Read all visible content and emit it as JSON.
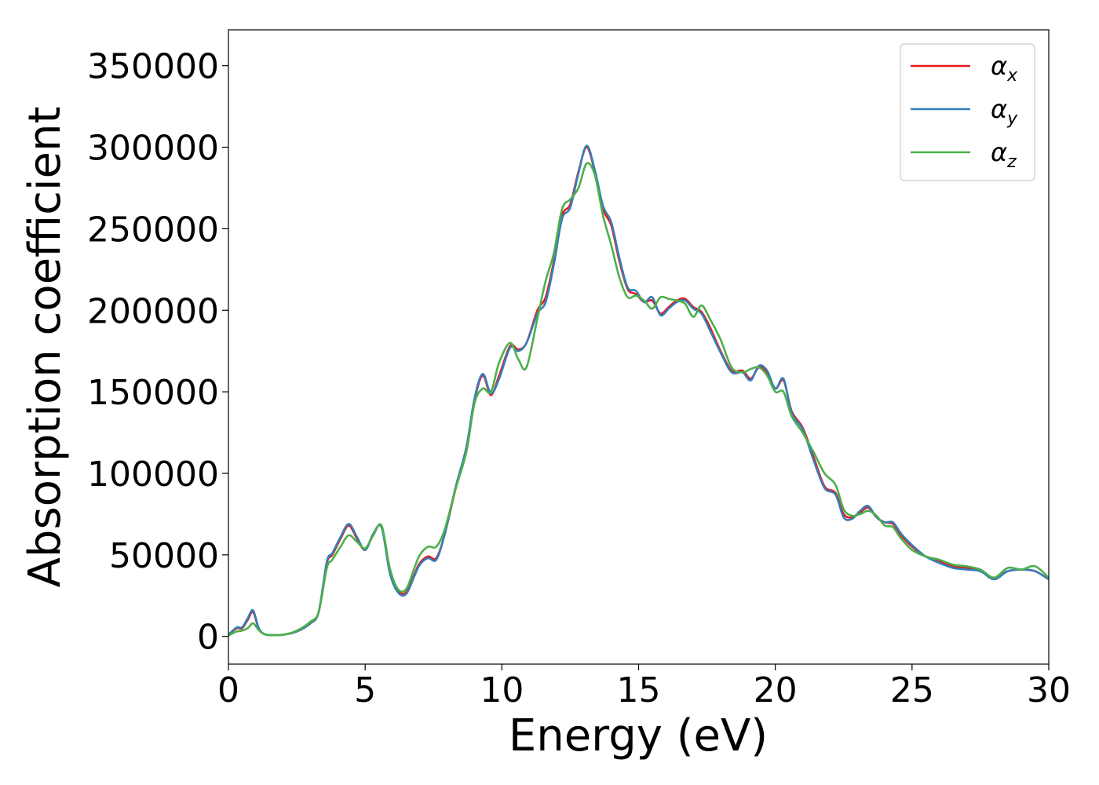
{
  "chart_data": {
    "type": "line",
    "title": "",
    "xlabel": "Energy (eV)",
    "ylabel": "Absorption coefficient",
    "xlim": [
      0,
      30
    ],
    "ylim": [
      -17000,
      372000
    ],
    "xticks": [
      0,
      5,
      10,
      15,
      20,
      25,
      30
    ],
    "yticks": [
      0,
      50000,
      100000,
      150000,
      200000,
      250000,
      300000,
      350000
    ],
    "grid": false,
    "legend_position": "top-right",
    "series": [
      {
        "name": "α_x",
        "label_main": "α",
        "label_sub": "x",
        "color": "#e41a1c",
        "x": [
          0,
          0.3,
          0.5,
          0.7,
          0.9,
          1.1,
          1.3,
          1.6,
          2.0,
          2.5,
          3.0,
          3.3,
          3.6,
          3.8,
          4.1,
          4.4,
          4.7,
          5.0,
          5.3,
          5.6,
          5.9,
          6.2,
          6.5,
          6.8,
          7.0,
          7.3,
          7.6,
          7.9,
          8.3,
          8.7,
          9.0,
          9.3,
          9.6,
          9.9,
          10.3,
          10.6,
          10.9,
          11.3,
          11.6,
          11.9,
          12.2,
          12.5,
          12.8,
          13.1,
          13.4,
          13.7,
          14.0,
          14.3,
          14.6,
          14.9,
          15.2,
          15.5,
          15.8,
          16.1,
          16.4,
          16.7,
          17.0,
          17.3,
          17.6,
          18.0,
          18.4,
          18.8,
          19.1,
          19.4,
          19.7,
          20.0,
          20.3,
          20.6,
          21.0,
          21.4,
          21.8,
          22.2,
          22.5,
          22.8,
          23.1,
          23.4,
          23.7,
          24.0,
          24.3,
          24.6,
          25.0,
          25.5,
          26.0,
          26.5,
          27.0,
          27.5,
          28.0,
          28.5,
          29.0,
          29.5,
          30.0
        ],
        "y": [
          1000,
          5000,
          5000,
          10000,
          15000,
          5000,
          1500,
          800,
          1000,
          3000,
          8000,
          15000,
          45000,
          50000,
          60000,
          68000,
          60000,
          53000,
          63000,
          67000,
          40000,
          28000,
          27000,
          38000,
          45000,
          49000,
          48000,
          62000,
          90000,
          115000,
          145000,
          160000,
          148000,
          160000,
          178000,
          176000,
          180000,
          200000,
          208000,
          230000,
          258000,
          265000,
          285000,
          300000,
          285000,
          262000,
          252000,
          230000,
          213000,
          210000,
          205000,
          206000,
          198000,
          202000,
          206000,
          207000,
          202000,
          199000,
          190000,
          175000,
          163000,
          163000,
          158000,
          165000,
          162000,
          152000,
          157000,
          138000,
          128000,
          110000,
          92000,
          88000,
          75000,
          73000,
          76000,
          79000,
          73000,
          70000,
          69000,
          62000,
          55000,
          49000,
          46000,
          43000,
          42000,
          40000,
          36000,
          40000,
          41000,
          40000,
          35000
        ]
      },
      {
        "name": "α_y",
        "label_main": "α",
        "label_sub": "y",
        "color": "#377eb8",
        "x": [
          0,
          0.3,
          0.5,
          0.7,
          0.9,
          1.1,
          1.3,
          1.6,
          2.0,
          2.5,
          3.0,
          3.3,
          3.6,
          3.8,
          4.1,
          4.4,
          4.7,
          5.0,
          5.3,
          5.6,
          5.9,
          6.2,
          6.5,
          6.8,
          7.0,
          7.3,
          7.6,
          7.9,
          8.3,
          8.7,
          9.0,
          9.3,
          9.6,
          9.9,
          10.3,
          10.6,
          10.9,
          11.3,
          11.6,
          11.9,
          12.2,
          12.5,
          12.8,
          13.1,
          13.4,
          13.7,
          14.0,
          14.3,
          14.6,
          14.9,
          15.2,
          15.5,
          15.8,
          16.1,
          16.4,
          16.7,
          17.0,
          17.3,
          17.6,
          18.0,
          18.4,
          18.8,
          19.1,
          19.4,
          19.7,
          20.0,
          20.3,
          20.6,
          21.0,
          21.4,
          21.8,
          22.2,
          22.5,
          22.8,
          23.1,
          23.4,
          23.7,
          24.0,
          24.3,
          24.6,
          25.0,
          25.5,
          26.0,
          26.5,
          27.0,
          27.5,
          28.0,
          28.5,
          29.0,
          29.5,
          30.0
        ],
        "y": [
          1000,
          5500,
          5500,
          11000,
          16000,
          5500,
          1500,
          800,
          1000,
          3000,
          8000,
          15000,
          46000,
          51000,
          61000,
          69000,
          61000,
          53000,
          63000,
          67000,
          39000,
          27000,
          26000,
          37000,
          44000,
          48000,
          47000,
          62000,
          91000,
          116000,
          146000,
          161000,
          149000,
          158000,
          177000,
          175000,
          180000,
          198000,
          205000,
          228000,
          256000,
          263000,
          284000,
          301000,
          286000,
          264000,
          254000,
          232000,
          214000,
          212000,
          205000,
          208000,
          197000,
          201000,
          205000,
          206000,
          201000,
          198000,
          188000,
          174000,
          162000,
          162000,
          157000,
          166000,
          163000,
          152000,
          158000,
          137000,
          127000,
          108000,
          91000,
          87000,
          73000,
          72000,
          77000,
          80000,
          73000,
          70000,
          70000,
          63000,
          56000,
          49000,
          45000,
          42000,
          41000,
          40000,
          35000,
          40000,
          41000,
          40000,
          35000
        ]
      },
      {
        "name": "α_z",
        "label_main": "α",
        "label_sub": "z",
        "color": "#4daf4a",
        "x": [
          0,
          0.3,
          0.5,
          0.7,
          0.9,
          1.1,
          1.3,
          1.6,
          2.0,
          2.5,
          3.0,
          3.3,
          3.6,
          3.8,
          4.1,
          4.4,
          4.7,
          5.0,
          5.3,
          5.6,
          5.9,
          6.2,
          6.5,
          6.8,
          7.0,
          7.3,
          7.6,
          7.9,
          8.3,
          8.7,
          9.0,
          9.3,
          9.6,
          9.9,
          10.3,
          10.6,
          10.9,
          11.3,
          11.6,
          11.9,
          12.2,
          12.5,
          12.8,
          13.1,
          13.4,
          13.7,
          14.0,
          14.3,
          14.6,
          14.9,
          15.2,
          15.5,
          15.8,
          16.1,
          16.4,
          16.7,
          17.0,
          17.3,
          17.6,
          18.0,
          18.4,
          18.8,
          19.1,
          19.4,
          19.7,
          20.0,
          20.3,
          20.6,
          21.0,
          21.4,
          21.8,
          22.2,
          22.5,
          22.8,
          23.1,
          23.4,
          23.7,
          24.0,
          24.3,
          24.6,
          25.0,
          25.5,
          26.0,
          26.5,
          27.0,
          27.5,
          28.0,
          28.5,
          29.0,
          29.5,
          30.0
        ],
        "y": [
          500,
          3000,
          3500,
          5000,
          8000,
          4000,
          1500,
          800,
          1000,
          3500,
          9000,
          15000,
          42000,
          47000,
          55000,
          62000,
          58000,
          54000,
          62000,
          68000,
          42000,
          29000,
          29000,
          42000,
          50000,
          55000,
          55000,
          65000,
          90000,
          113000,
          143000,
          152000,
          150000,
          168000,
          180000,
          170000,
          165000,
          195000,
          218000,
          235000,
          262000,
          268000,
          275000,
          290000,
          283000,
          258000,
          240000,
          220000,
          208000,
          209000,
          206000,
          201000,
          208000,
          207000,
          206000,
          204000,
          196000,
          203000,
          195000,
          182000,
          165000,
          162000,
          164000,
          165000,
          160000,
          150000,
          150000,
          135000,
          125000,
          113000,
          100000,
          93000,
          78000,
          74000,
          75000,
          77000,
          74000,
          68000,
          67000,
          60000,
          53000,
          49000,
          47000,
          44000,
          43000,
          41000,
          36000,
          42000,
          41000,
          43000,
          36000
        ]
      }
    ]
  }
}
